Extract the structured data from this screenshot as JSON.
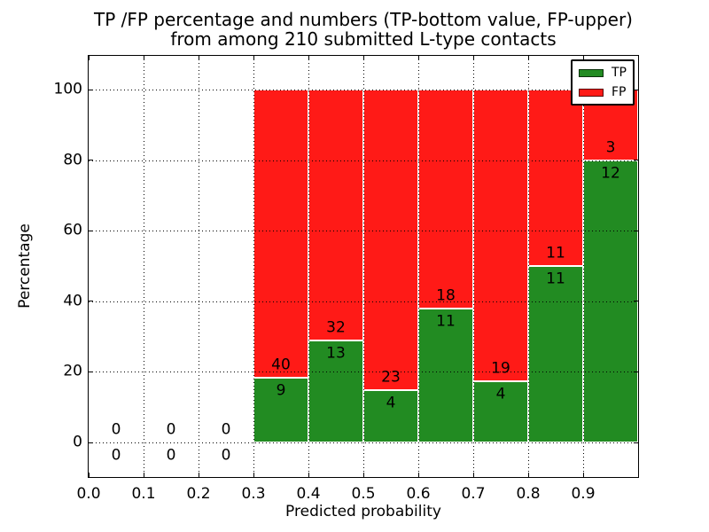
{
  "figure": {
    "title_line1": "TP /FP percentage and numbers (TP-bottom value, FP-upper)",
    "title_line2": "from among 210 submitted L-type contacts"
  },
  "axes": {
    "xlabel": "Predicted probability",
    "ylabel": "Percentage"
  },
  "legend": {
    "items": [
      {
        "label": "TP",
        "color": "#228B22"
      },
      {
        "label": "FP",
        "color": "#FF1A17"
      }
    ]
  },
  "chart_data": {
    "type": "bar",
    "subtype": "stacked-percentage-histogram",
    "title": "TP /FP percentage and numbers (TP-bottom value, FP-upper)\nfrom among 210 submitted L-type contacts",
    "xlabel": "Predicted probability",
    "ylabel": "Percentage",
    "xlim": [
      0.0,
      1.0
    ],
    "ylim": [
      -10,
      110
    ],
    "grid": true,
    "grid_style": "dotted",
    "legend_position": "upper right",
    "bin_edges": [
      0.0,
      0.1,
      0.2,
      0.3,
      0.4,
      0.5,
      0.6,
      0.7,
      0.8,
      0.9,
      1.0
    ],
    "x_ticks": [
      0.0,
      0.1,
      0.2,
      0.3,
      0.4,
      0.5,
      0.6,
      0.7,
      0.8,
      0.9
    ],
    "y_ticks": [
      0,
      20,
      40,
      60,
      80,
      100
    ],
    "series": [
      {
        "name": "TP",
        "color": "#228B22",
        "counts": [
          0,
          0,
          0,
          9,
          13,
          4,
          11,
          4,
          11,
          12
        ]
      },
      {
        "name": "FP",
        "color": "#FF1A17",
        "counts": [
          0,
          0,
          0,
          40,
          32,
          23,
          18,
          19,
          11,
          3
        ]
      }
    ],
    "tp_green_height_percent": [
      null,
      null,
      null,
      18.4,
      28.9,
      14.8,
      37.9,
      17.4,
      50.0,
      80.0
    ],
    "total_contacts": 210
  }
}
